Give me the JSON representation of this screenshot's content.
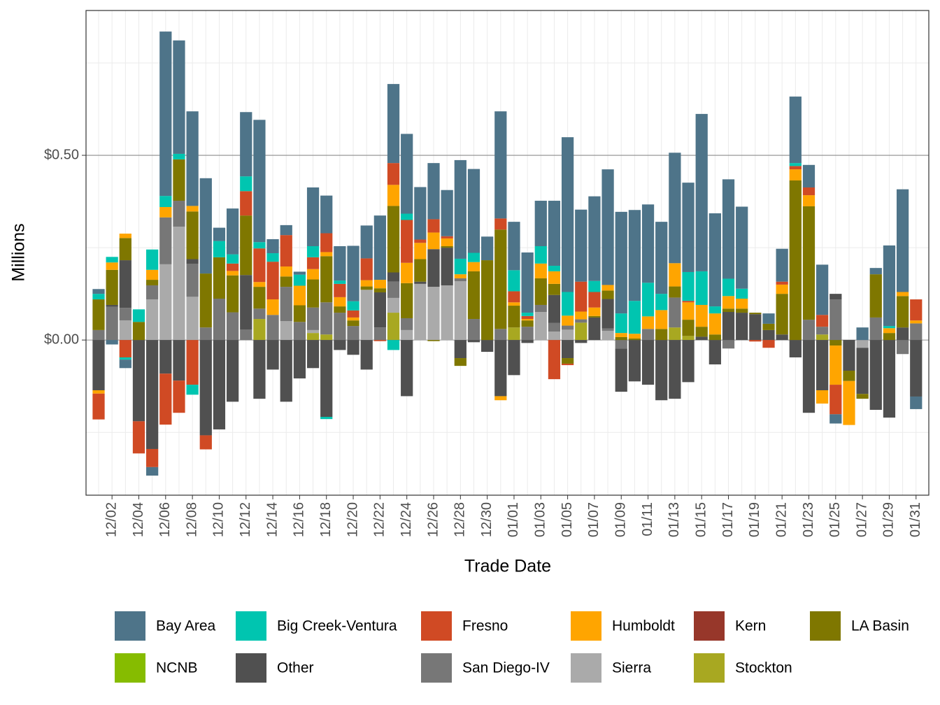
{
  "chart_data": {
    "type": "bar",
    "stacked": true,
    "x_label": "Trade Date",
    "y_label": "Millions",
    "categories": [
      null,
      "12/02",
      null,
      "12/04",
      null,
      "12/06",
      null,
      "12/08",
      null,
      "12/10",
      null,
      "12/12",
      null,
      "12/14",
      null,
      "12/16",
      null,
      "12/18",
      null,
      "12/20",
      null,
      "12/22",
      null,
      "12/24",
      null,
      "12/26",
      null,
      "12/28",
      null,
      "12/30",
      null,
      "01/01",
      null,
      "01/03",
      null,
      "01/05",
      null,
      "01/07",
      null,
      "01/09",
      null,
      "01/11",
      null,
      "01/13",
      null,
      "01/15",
      null,
      "01/17",
      null,
      "01/19",
      null,
      "01/21",
      null,
      "01/23",
      null,
      "01/25",
      null,
      "01/27",
      null,
      "01/29",
      null,
      "01/31"
    ],
    "ylim": [
      -0.42,
      0.892
    ],
    "yticks": [
      {
        "value": 0,
        "label": "$0.00"
      },
      {
        "value": 0.5,
        "label": "$0.50"
      }
    ],
    "yminor": [
      -0.25,
      0.25,
      0.75
    ],
    "grid": true,
    "legend": "bottom",
    "series": [
      {
        "name": "Bay Area",
        "color": "#4e7489",
        "values": [
          0.013,
          -0.012,
          -0.023,
          0,
          -0.023,
          0.445,
          0.307,
          0.256,
          0.258,
          0.036,
          0.124,
          0.174,
          0.331,
          0.038,
          0.027,
          0.008,
          0.159,
          0.102,
          0.093,
          0.15,
          0.089,
          0.174,
          0.214,
          0.216,
          0.142,
          0.152,
          0.125,
          0.267,
          0.227,
          0.064,
          0.29,
          0.131,
          0.163,
          0.123,
          0.176,
          0.419,
          0.195,
          0.229,
          0.313,
          0.275,
          0.246,
          0.212,
          0.195,
          0.299,
          0.242,
          0.426,
          0.252,
          0.269,
          0.222,
          0,
          0.028,
          0.089,
          0.18,
          0.061,
          0.136,
          -0.025,
          0,
          0.034,
          0.017,
          0.218,
          0.278,
          -0.034
        ]
      },
      {
        "name": "Big Creek-Ventura",
        "color": "#00c5b0",
        "values": [
          0.015,
          0.015,
          -0.006,
          0.034,
          0.055,
          0.03,
          0.015,
          -0.027,
          0,
          0.044,
          0.025,
          0.04,
          0.017,
          0.023,
          0,
          0.03,
          0.03,
          -0.006,
          0.009,
          0.025,
          0,
          0,
          -0.027,
          0.017,
          0,
          0,
          0,
          0.042,
          0.025,
          0,
          0,
          0.057,
          0.009,
          0.047,
          0.015,
          0.064,
          0,
          0.03,
          0,
          0.053,
          0.089,
          0.091,
          0.044,
          0,
          0.078,
          0.091,
          0.019,
          0.047,
          0.027,
          0,
          0,
          0,
          0.008,
          0,
          0,
          0,
          0,
          0,
          0,
          0.006,
          0,
          0
        ]
      },
      {
        "name": "Fresno",
        "color": "#d04a24",
        "values": [
          -0.07,
          0,
          -0.047,
          -0.087,
          -0.049,
          -0.138,
          -0.087,
          -0.121,
          -0.038,
          0,
          0.02,
          0.066,
          0.091,
          0.102,
          0.085,
          0,
          0.032,
          0.051,
          0.036,
          0.019,
          0.059,
          -0.003,
          0.059,
          0.116,
          0.009,
          0.036,
          0.006,
          0,
          0,
          0,
          0.03,
          0.03,
          0.008,
          0,
          -0.106,
          -0.004,
          0.081,
          0.042,
          0,
          0,
          0,
          0,
          0,
          0,
          0.004,
          0,
          0,
          0,
          0,
          -0.004,
          -0.021,
          0.008,
          0.009,
          0.021,
          0.032,
          -0.08,
          0,
          0,
          0,
          0,
          0,
          0.057
        ]
      },
      {
        "name": "Humboldt",
        "color": "#ffa500",
        "values": [
          -0.009,
          0.02,
          0.012,
          0,
          0.027,
          0.028,
          0,
          0.015,
          0,
          0,
          0.012,
          0,
          0.013,
          0.042,
          0.027,
          0.053,
          0.028,
          0.011,
          0.025,
          0.008,
          0.017,
          0.023,
          0.057,
          0.055,
          0.044,
          0.045,
          0.021,
          0.011,
          0.025,
          0,
          -0.011,
          0.009,
          0.004,
          0.04,
          0.034,
          0.027,
          0.021,
          0.023,
          0.015,
          0.011,
          0.013,
          0.034,
          0.051,
          0.063,
          0.047,
          0.059,
          0.057,
          0.034,
          0.027,
          0,
          0,
          0.025,
          0.03,
          0.03,
          -0.036,
          -0.106,
          -0.119,
          0,
          0,
          0.013,
          0.011,
          0.008
        ]
      },
      {
        "name": "Kern",
        "color": "#97372a",
        "values": [
          0,
          0,
          0,
          0,
          0,
          0,
          0,
          0,
          0,
          0,
          0,
          0,
          0,
          0,
          0,
          0,
          0,
          0,
          0,
          0,
          0,
          0,
          0,
          0,
          0,
          0,
          0,
          0,
          0,
          0,
          0,
          0,
          0,
          0,
          0,
          0,
          0,
          0,
          0,
          0,
          0,
          0,
          0,
          0,
          0,
          0,
          0,
          0,
          0,
          0,
          0,
          0,
          0,
          0,
          0,
          0,
          0,
          0,
          0,
          0,
          0,
          0
        ]
      },
      {
        "name": "LA Basin",
        "color": "#7f7700",
        "values": [
          0.083,
          0.095,
          0.06,
          0.049,
          0.015,
          0,
          0.112,
          0.129,
          0.146,
          0.112,
          0.1,
          0.161,
          0.059,
          0,
          0.028,
          0.045,
          0.076,
          0.125,
          0.017,
          0.015,
          0.009,
          0.011,
          0.18,
          0.095,
          0.061,
          -0.003,
          0.004,
          -0.021,
          0.129,
          0.216,
          0.269,
          0.059,
          0.017,
          0.072,
          0.03,
          -0.015,
          0,
          0.004,
          0.023,
          0.008,
          0.004,
          0,
          0.03,
          0.03,
          0.044,
          0.027,
          0.015,
          0.009,
          0.011,
          0.004,
          0.017,
          0.11,
          0.432,
          0.307,
          0,
          -0.015,
          -0.028,
          -0.013,
          0.117,
          0.019,
          0.085,
          0
        ]
      },
      {
        "name": "NCNB",
        "color": "#86bc00",
        "values": [
          0,
          0,
          0,
          0,
          0,
          0,
          0,
          0,
          0,
          0,
          0,
          0,
          0,
          0,
          0,
          0,
          0,
          0,
          0,
          0,
          0,
          0,
          0,
          0,
          0,
          0,
          0,
          0,
          0,
          0,
          0,
          0,
          0,
          0,
          0,
          0,
          0,
          0,
          0,
          0,
          0,
          0,
          0,
          0,
          0,
          0,
          0,
          0,
          0,
          0,
          0,
          0,
          0,
          0,
          0,
          0,
          0,
          0,
          0,
          0,
          0,
          0
        ]
      },
      {
        "name": "Other",
        "color": "#505050",
        "values": [
          -0.136,
          0.005,
          0.129,
          -0.22,
          -0.295,
          -0.091,
          -0.11,
          0.013,
          -0.258,
          -0.242,
          -0.167,
          0.148,
          -0.159,
          -0.08,
          -0.167,
          -0.104,
          -0.076,
          -0.208,
          -0.027,
          -0.04,
          -0.08,
          0.095,
          0.025,
          -0.152,
          0.006,
          0.102,
          0.102,
          -0.049,
          -0.006,
          -0.032,
          -0.152,
          -0.095,
          -0.008,
          0,
          0.076,
          -0.049,
          -0.008,
          0.061,
          0.08,
          -0.117,
          -0.112,
          -0.121,
          -0.163,
          -0.159,
          -0.114,
          0.009,
          -0.066,
          0.076,
          0.074,
          0.07,
          0.027,
          0.015,
          -0.047,
          -0.197,
          -0.136,
          0.015,
          -0.083,
          -0.125,
          -0.189,
          -0.21,
          0.034,
          -0.153
        ]
      },
      {
        "name": "San Diego-IV",
        "color": "#777777",
        "values": [
          0.027,
          0.09,
          0.034,
          0,
          0.038,
          0.127,
          0.07,
          0.089,
          0.034,
          0.112,
          0.075,
          0.028,
          0.028,
          0.068,
          0.093,
          0.049,
          0.061,
          0.087,
          0.074,
          0.038,
          0,
          0.034,
          0.044,
          0.032,
          0,
          0,
          0,
          0.008,
          0.057,
          0,
          0.03,
          0,
          0.036,
          0.019,
          0.023,
          0.011,
          0.009,
          0,
          0.006,
          -0.023,
          0,
          0.03,
          0,
          0.081,
          0,
          0,
          0,
          -0.023,
          0,
          0,
          0,
          0,
          0,
          0.055,
          0.021,
          0.11,
          0,
          0,
          0.061,
          0,
          -0.038,
          0.045
        ]
      },
      {
        "name": "Sierra",
        "color": "#aaaaaa",
        "values": [
          0,
          0,
          0.053,
          0,
          0.11,
          0.205,
          0.307,
          0.117,
          0,
          0,
          0,
          0,
          0,
          0,
          0.051,
          0,
          0.008,
          0,
          0,
          0,
          0.136,
          0,
          0.04,
          0.027,
          0.152,
          0.144,
          0.148,
          0.159,
          0,
          0,
          0,
          0,
          0,
          0.076,
          0.023,
          0.028,
          0,
          0,
          0.025,
          0,
          0,
          0,
          0,
          0,
          0,
          0,
          0,
          0,
          0,
          0,
          0,
          0,
          0,
          0,
          0,
          0,
          0,
          -0.021,
          0,
          0,
          0,
          0
        ]
      },
      {
        "name": "Stockton",
        "color": "#a8a821",
        "values": [
          0,
          0,
          0,
          0,
          0,
          0,
          0,
          0,
          0,
          0,
          0,
          0,
          0.057,
          0,
          0,
          0,
          0.019,
          0.015,
          0,
          0,
          0,
          0,
          0.074,
          0,
          0,
          0,
          0,
          0,
          0,
          0,
          0,
          0.034,
          0,
          0,
          0,
          0,
          0.047,
          0,
          0,
          0,
          0,
          0,
          0,
          0.034,
          0.011,
          0,
          0,
          0,
          0,
          0,
          0,
          0,
          0,
          0,
          0.015,
          0,
          0,
          0,
          0,
          0,
          0,
          0
        ]
      }
    ]
  }
}
